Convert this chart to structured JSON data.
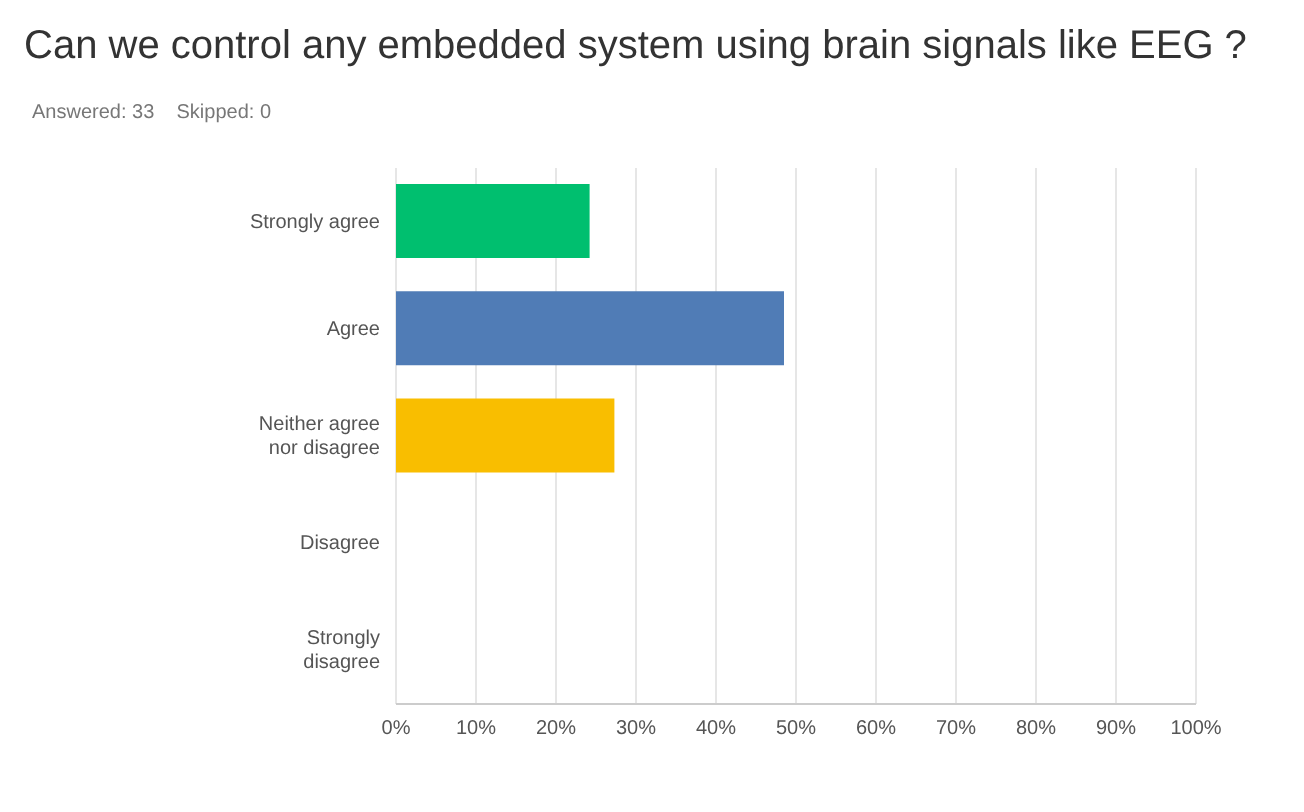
{
  "chart_data": {
    "type": "bar",
    "orientation": "horizontal",
    "title": "Can we control any embedded system using brain signals like EEG ?",
    "subtitle": "Answered: 33    Skipped: 0",
    "categories": [
      "Strongly agree",
      "Agree",
      "Neither agree nor disagree",
      "Disagree",
      "Strongly disagree"
    ],
    "values": [
      24.2,
      48.5,
      27.3,
      0,
      0
    ],
    "colors": [
      "#00bf6f",
      "#507cb6",
      "#f9be00",
      "#ec5b60",
      "#a0a0a0"
    ],
    "xlim": [
      0,
      100
    ],
    "xticks": [
      {
        "value": 0,
        "label": "0%"
      },
      {
        "value": 10,
        "label": "10%"
      },
      {
        "value": 20,
        "label": "20%"
      },
      {
        "value": 30,
        "label": "30%"
      },
      {
        "value": 40,
        "label": "40%"
      },
      {
        "value": 50,
        "label": "50%"
      },
      {
        "value": 60,
        "label": "60%"
      },
      {
        "value": 70,
        "label": "70%"
      },
      {
        "value": 80,
        "label": "80%"
      },
      {
        "value": 90,
        "label": "90%"
      },
      {
        "value": 100,
        "label": "100%"
      }
    ],
    "grid": "x",
    "legend": false
  }
}
